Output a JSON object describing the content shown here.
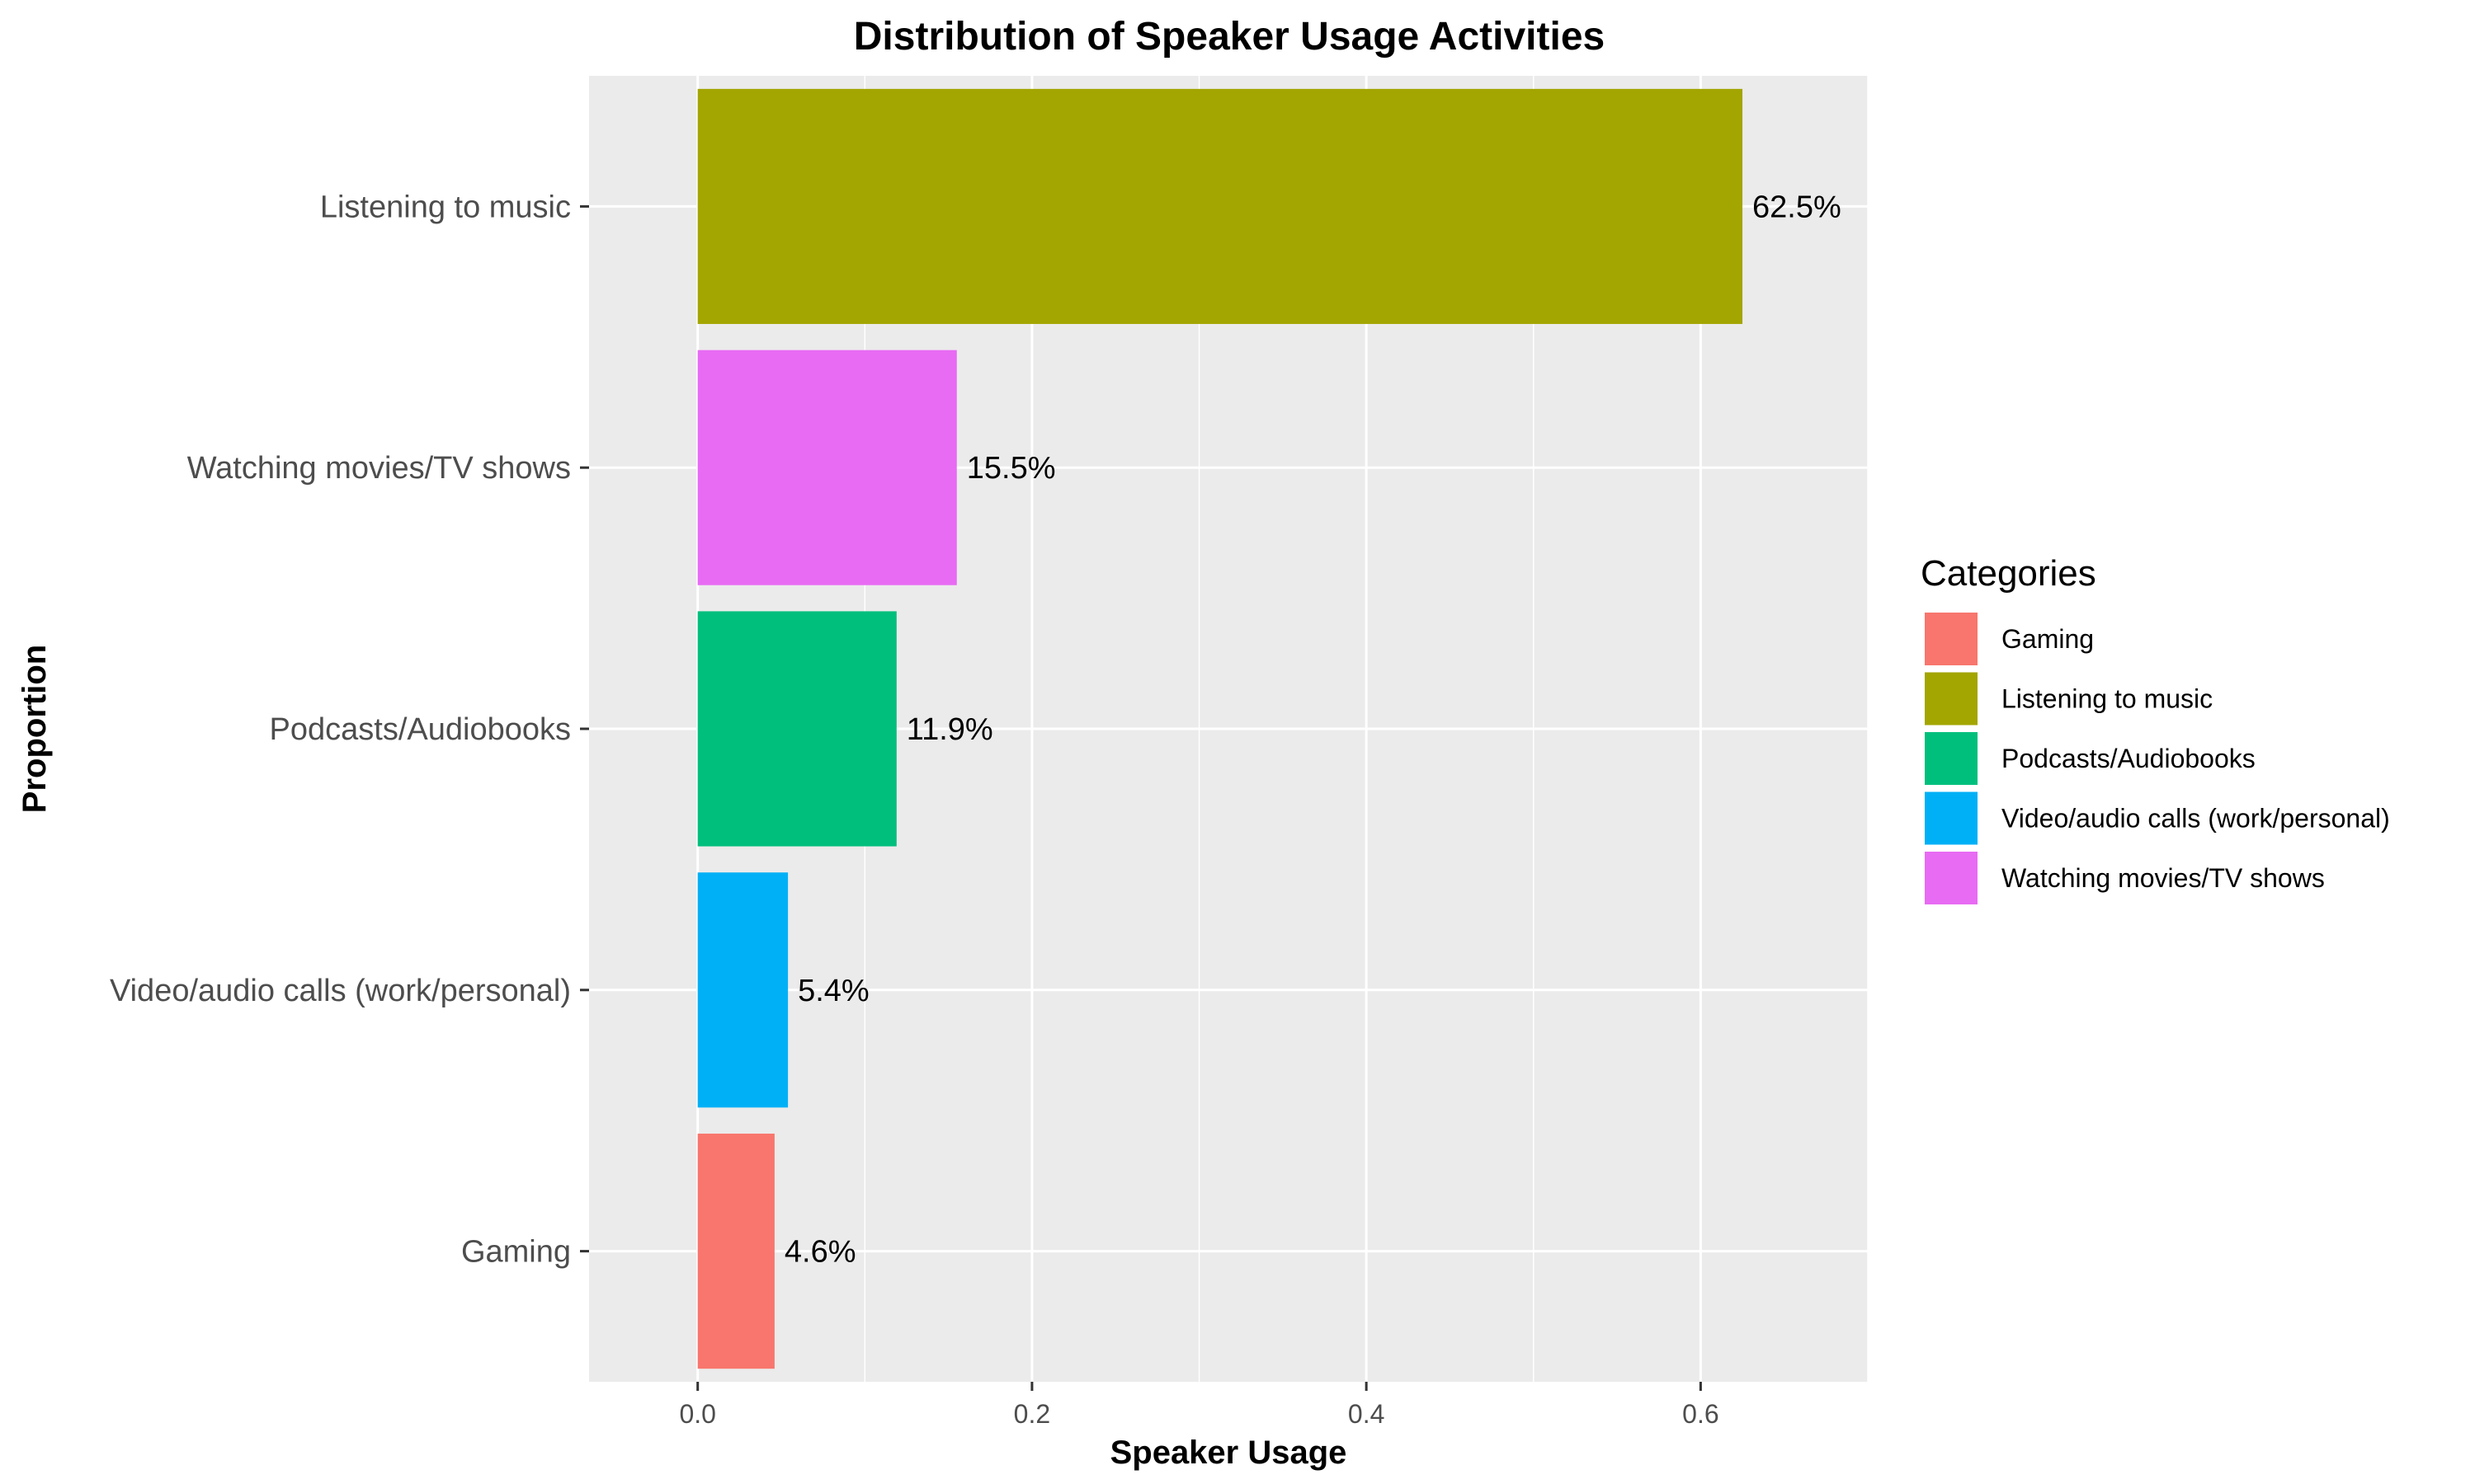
{
  "chart_data": {
    "type": "bar",
    "orientation": "horizontal",
    "title": "Distribution of Speaker Usage Activities",
    "xlabel": "Speaker Usage",
    "ylabel": "Proportion",
    "xlim": [
      -0.065,
      0.7
    ],
    "xticks": [
      0.0,
      0.2,
      0.4,
      0.6
    ],
    "xtick_labels": [
      "0.0",
      "0.2",
      "0.4",
      "0.6"
    ],
    "grid": true,
    "categories": [
      "Listening to music",
      "Watching movies/TV shows",
      "Podcasts/Audiobooks",
      "Video/audio calls (work/personal)",
      "Gaming"
    ],
    "values": [
      0.625,
      0.155,
      0.119,
      0.054,
      0.046
    ],
    "data_labels": [
      "62.5%",
      "15.5%",
      "11.9%",
      "5.4%",
      "4.6%"
    ],
    "colors": [
      "#A3A500",
      "#E76BF3",
      "#00BF7D",
      "#00B0F6",
      "#F8766D"
    ],
    "legend": {
      "title": "Categories",
      "position": "right",
      "items": [
        {
          "label": "Gaming",
          "color": "#F8766D"
        },
        {
          "label": "Listening to music",
          "color": "#A3A500"
        },
        {
          "label": "Podcasts/Audiobooks",
          "color": "#00BF7D"
        },
        {
          "label": "Video/audio calls (work/personal)",
          "color": "#00B0F6"
        },
        {
          "label": "Watching movies/TV shows",
          "color": "#E76BF3"
        }
      ]
    }
  }
}
